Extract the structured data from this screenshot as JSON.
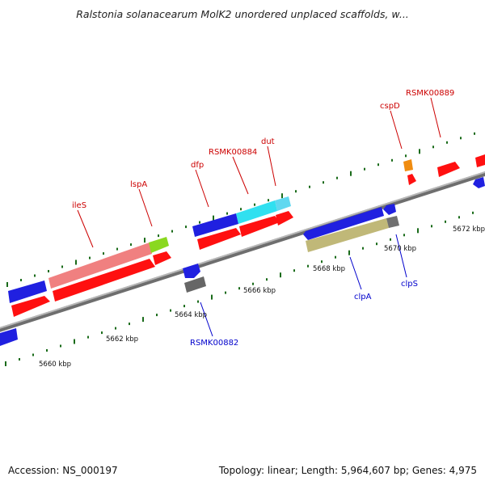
{
  "title": "Ralstonia solanacearum MolK2 unordered unplaced scaffolds, w...",
  "footer": {
    "accession": "Accession: NS_000197",
    "summary": "Topology: linear; Length: 5,964,607 bp; Genes: 4,975"
  },
  "colors": {
    "backbone": "#8a8a8a",
    "forward_gene": "#ff1010",
    "reverse_gene": "#1a1aff",
    "forward_label": "#cc0000",
    "reverse_label": "#0000cc",
    "tick": "#1a6b1a"
  },
  "scale_labels": [
    "5660 kbp",
    "5662 kbp",
    "5664 kbp",
    "5666 kbp",
    "5668 kbp",
    "5670 kbp",
    "5672 kbp"
  ],
  "forward_labels": [
    "ileS",
    "lspA",
    "dfp",
    "RSMK00884",
    "dut",
    "cspD",
    "RSMK00889"
  ],
  "reverse_labels": [
    "RSMK00882",
    "clpA",
    "clpS"
  ]
}
